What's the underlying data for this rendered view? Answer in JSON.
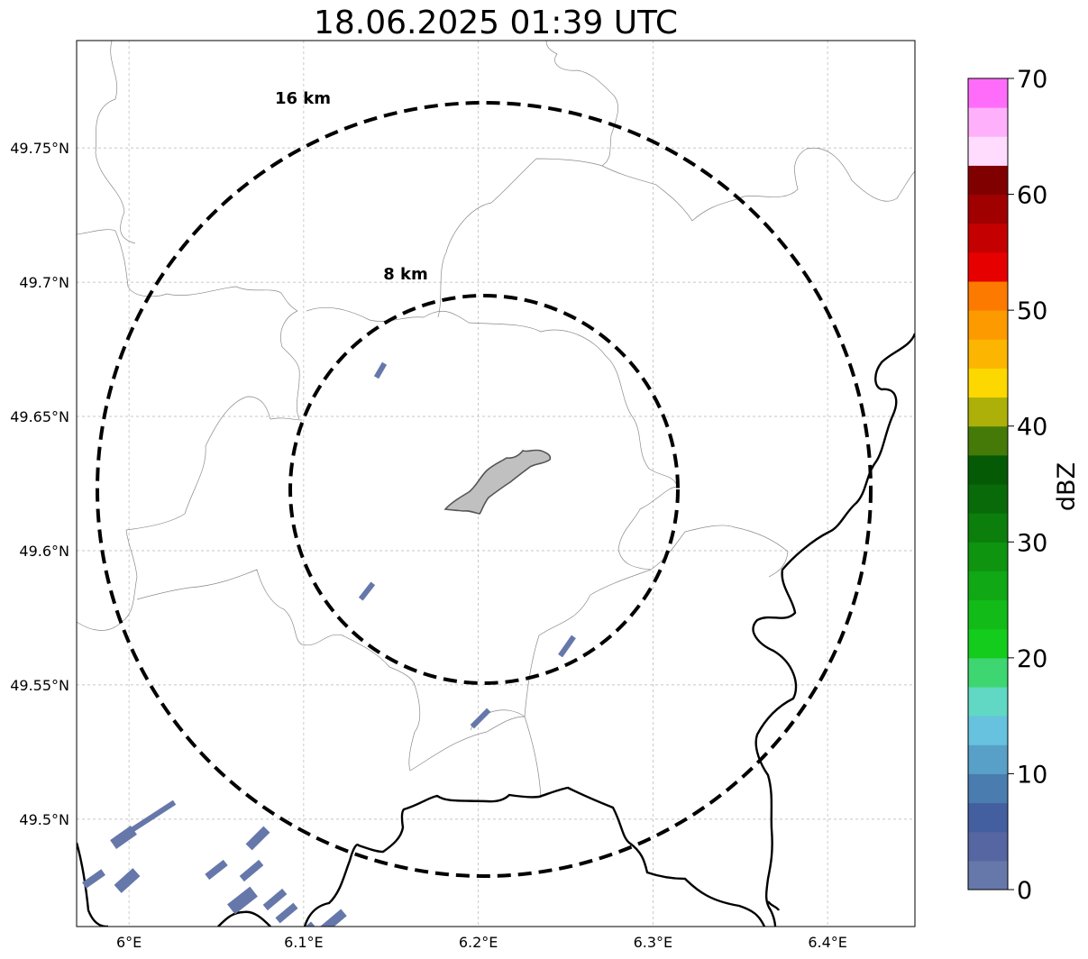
{
  "title": "18.06.2025 01:39 UTC",
  "map": {
    "lon_range": [
      5.97,
      6.45
    ],
    "lat_range": [
      49.46,
      49.79
    ],
    "x_ticks": [
      {
        "value": 6.0,
        "label": "6°E"
      },
      {
        "value": 6.1,
        "label": "6.1°E"
      },
      {
        "value": 6.2,
        "label": "6.2°E"
      },
      {
        "value": 6.3,
        "label": "6.3°E"
      },
      {
        "value": 6.4,
        "label": "6.4°E"
      }
    ],
    "y_ticks": [
      {
        "value": 49.5,
        "label": "49.5°N"
      },
      {
        "value": 49.55,
        "label": "49.55°N"
      },
      {
        "value": 49.6,
        "label": "49.6°N"
      },
      {
        "value": 49.65,
        "label": "49.65°N"
      },
      {
        "value": 49.7,
        "label": "49.7°N"
      },
      {
        "value": 49.75,
        "label": "49.75°N"
      }
    ],
    "gridlines": true,
    "range_rings": [
      {
        "radius_km": 8,
        "label": "8 km"
      },
      {
        "radius_km": 16,
        "label": "16 km"
      }
    ],
    "radar_center": {
      "lon": 6.202,
      "lat": 49.623
    },
    "city_area": "gray filled polygon near center",
    "echo_color": "#6677aa"
  },
  "colorbar": {
    "label": "dBZ",
    "min": 0,
    "max": 70,
    "step": 2.5,
    "tick_labels": [
      "0",
      "10",
      "20",
      "30",
      "40",
      "50",
      "60",
      "70"
    ],
    "colors": [
      "#6677aa",
      "#5566a2",
      "#445f9f",
      "#4a7cb0",
      "#58a0c8",
      "#66c2de",
      "#60d8c4",
      "#3ed670",
      "#14cc1c",
      "#12bb18",
      "#10a814",
      "#0e940f",
      "#0c7e0c",
      "#086a08",
      "#055a05",
      "#457a08",
      "#adb008",
      "#fcd800",
      "#fcb500",
      "#fc9a00",
      "#fc7a00",
      "#e60000",
      "#c40000",
      "#a00000",
      "#800000",
      "#ffdcfd",
      "#ffb0fb",
      "#ff6cfa",
      "#f030f0"
    ]
  }
}
